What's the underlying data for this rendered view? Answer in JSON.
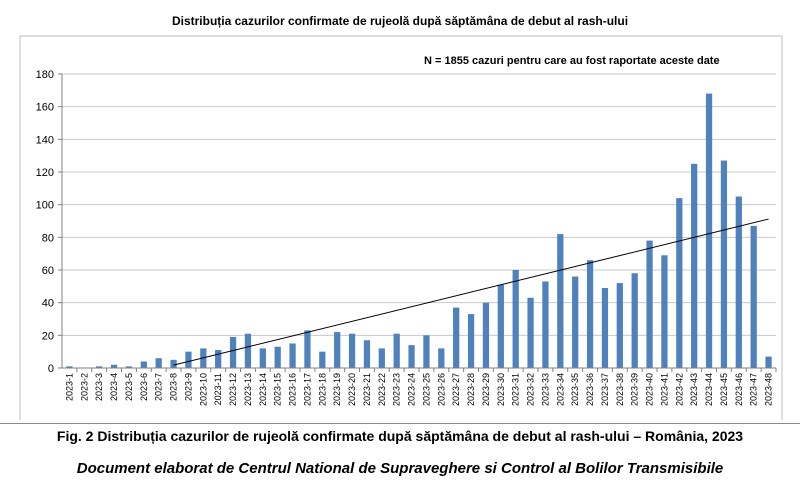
{
  "chart_data": {
    "type": "bar",
    "title": "Distribuția cazurilor confirmate de rujeolă după săptămâna de debut al rash-ului",
    "annotation": "N = 1855 cazuri pentru care au fost raportate aceste date",
    "categories": [
      "2023-1",
      "2023-2",
      "2023-3",
      "2023-4",
      "2023-5",
      "2023-6",
      "2023-7",
      "2023-8",
      "2023-9",
      "2023-10",
      "2023-11",
      "2023-12",
      "2023-13",
      "2023-14",
      "2023-15",
      "2023-16",
      "2023-17",
      "2023-18",
      "2023-19",
      "2023-20",
      "2023-21",
      "2023-22",
      "2023-23",
      "2023-24",
      "2023-25",
      "2023-26",
      "2023-27",
      "2023-28",
      "2023-29",
      "2023-30",
      "2023-31",
      "2023-32",
      "2023-33",
      "2023-34",
      "2023-35",
      "2023-36",
      "2023-37",
      "2023-38",
      "2023-39",
      "2023-40",
      "2023-41",
      "2023-42",
      "2023-43",
      "2023-44",
      "2023-45",
      "2023-46",
      "2023-47",
      "2023-48"
    ],
    "values": [
      1,
      0,
      1,
      2,
      1,
      4,
      6,
      5,
      10,
      12,
      11,
      19,
      21,
      12,
      13,
      15,
      23,
      10,
      22,
      21,
      17,
      12,
      21,
      14,
      20,
      12,
      37,
      33,
      40,
      51,
      60,
      43,
      53,
      82,
      56,
      66,
      49,
      52,
      58,
      78,
      69,
      104,
      125,
      168,
      127,
      105,
      87,
      7
    ],
    "yticks": [
      0,
      20,
      40,
      60,
      80,
      100,
      120,
      140,
      160,
      180
    ],
    "ylim": [
      0,
      180
    ],
    "trendline": true,
    "trend_start_category": "2023-8",
    "bar_color": "#4f81bd",
    "grid": true
  },
  "caption": "Fig. 2 Distribuția cazurilor de rujeolă confirmate după săptămâna de debut al rash-ului  – România, 2023",
  "credit": "Document elaborat de Centrul National de Supraveghere si Control al Bolilor Transmisibile"
}
